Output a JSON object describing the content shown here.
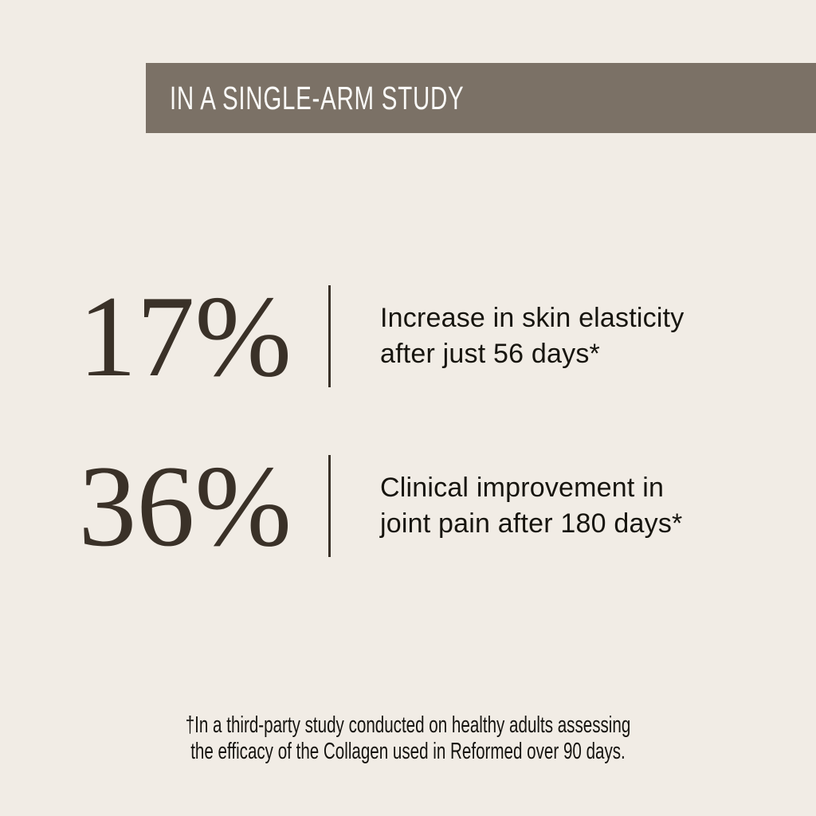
{
  "colors": {
    "background": "#f1ece5",
    "banner_background": "#7b7166",
    "banner_text": "#fafaf8",
    "stat_number": "#3a3128",
    "divider": "#3a3128",
    "stat_text": "#17150f",
    "footnote_text": "#15130f"
  },
  "banner": {
    "title": "IN A SINGLE-ARM STUDY"
  },
  "stats": [
    {
      "value": "17%",
      "line1": "Increase in skin elasticity",
      "line2": "after just 56 days*"
    },
    {
      "value": "36%",
      "line1": "Clinical improvement in",
      "line2": "joint pain after 180 days*"
    }
  ],
  "footnote": {
    "line1": "†In a third-party study conducted on healthy adults assessing",
    "line2": "the efficacy of the Collagen used in Reformed over 90 days."
  }
}
